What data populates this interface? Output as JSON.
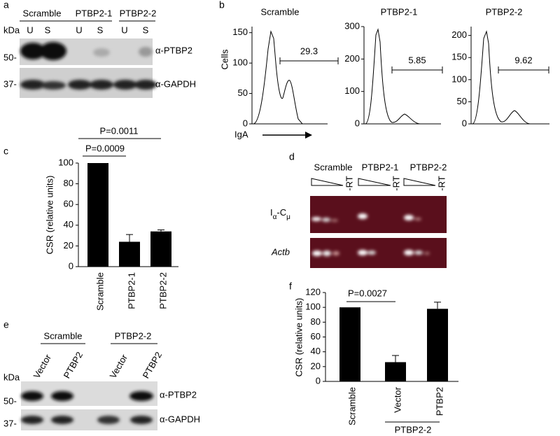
{
  "panel_letters": [
    "a",
    "b",
    "c",
    "d",
    "e",
    "f"
  ],
  "blot_a": {
    "groups": [
      "Scramble",
      "PTBP2-1",
      "PTBP2-2"
    ],
    "lanes": [
      "U",
      "S",
      "U",
      "S",
      "U",
      "S"
    ],
    "kda": "kDa",
    "markers": [
      "50-",
      "37-"
    ],
    "antibodies": [
      "α-PTBP2",
      "α-GAPDH"
    ]
  },
  "flow": {
    "ylabel": "Cells",
    "xlabel": "IgA",
    "plots": [
      {
        "title": "Scramble",
        "ylim": [
          0,
          160
        ],
        "yticks": [
          0,
          50,
          100,
          150
        ],
        "gate": 29.3
      },
      {
        "title": "PTBP2-1",
        "ylim": [
          0,
          300
        ],
        "yticks": [
          0,
          100,
          200,
          300
        ],
        "gate": 5.85
      },
      {
        "title": "PTBP2-2",
        "ylim": [
          0,
          220
        ],
        "yticks": [
          0,
          50,
          100,
          150,
          200
        ],
        "gate": 9.62
      }
    ]
  },
  "gel_d": {
    "groups": [
      "Scramble",
      "PTBP2-1",
      "PTBP2-2"
    ],
    "no_rt": [
      "-RT",
      "-RT",
      "-RT"
    ],
    "row1": [
      "I",
      "α",
      "-C",
      "μ"
    ],
    "row2": "Actb"
  },
  "blot_e": {
    "groups": [
      "Scramble",
      "PTBP2-2"
    ],
    "lanes": [
      "Vector",
      "PTBP2",
      "Vector",
      "PTBP2"
    ],
    "kda": "kDa",
    "markers": [
      "50-",
      "37-"
    ],
    "antibodies": [
      "α-PTBP2",
      "α-GAPDH"
    ]
  },
  "chart_data": [
    {
      "type": "bar",
      "ylabel": "CSR (relative units)",
      "categories": [
        "Scramble",
        "PTBP2-1",
        "PTBP2-2"
      ],
      "values": [
        100,
        24,
        34
      ],
      "errors": [
        null,
        7,
        1.5
      ],
      "color": "#000000",
      "ylim": [
        0,
        100
      ],
      "yticks": [
        0,
        20,
        40,
        60,
        80,
        100
      ],
      "annotations": [
        "P=0.0011",
        "P=0.0009"
      ]
    },
    {
      "type": "bar",
      "ylabel": "CSR (relative units)",
      "categories": [
        "Scramble",
        "Vector",
        "PTBP2"
      ],
      "values": [
        100,
        26,
        98
      ],
      "errors": [
        null,
        9,
        9
      ],
      "color": "#000000",
      "ylim": [
        0,
        120
      ],
      "yticks": [
        0,
        20,
        40,
        60,
        80,
        100,
        120
      ],
      "annotations": [
        "P=0.0027"
      ],
      "group_label": "PTBP2-2"
    }
  ]
}
